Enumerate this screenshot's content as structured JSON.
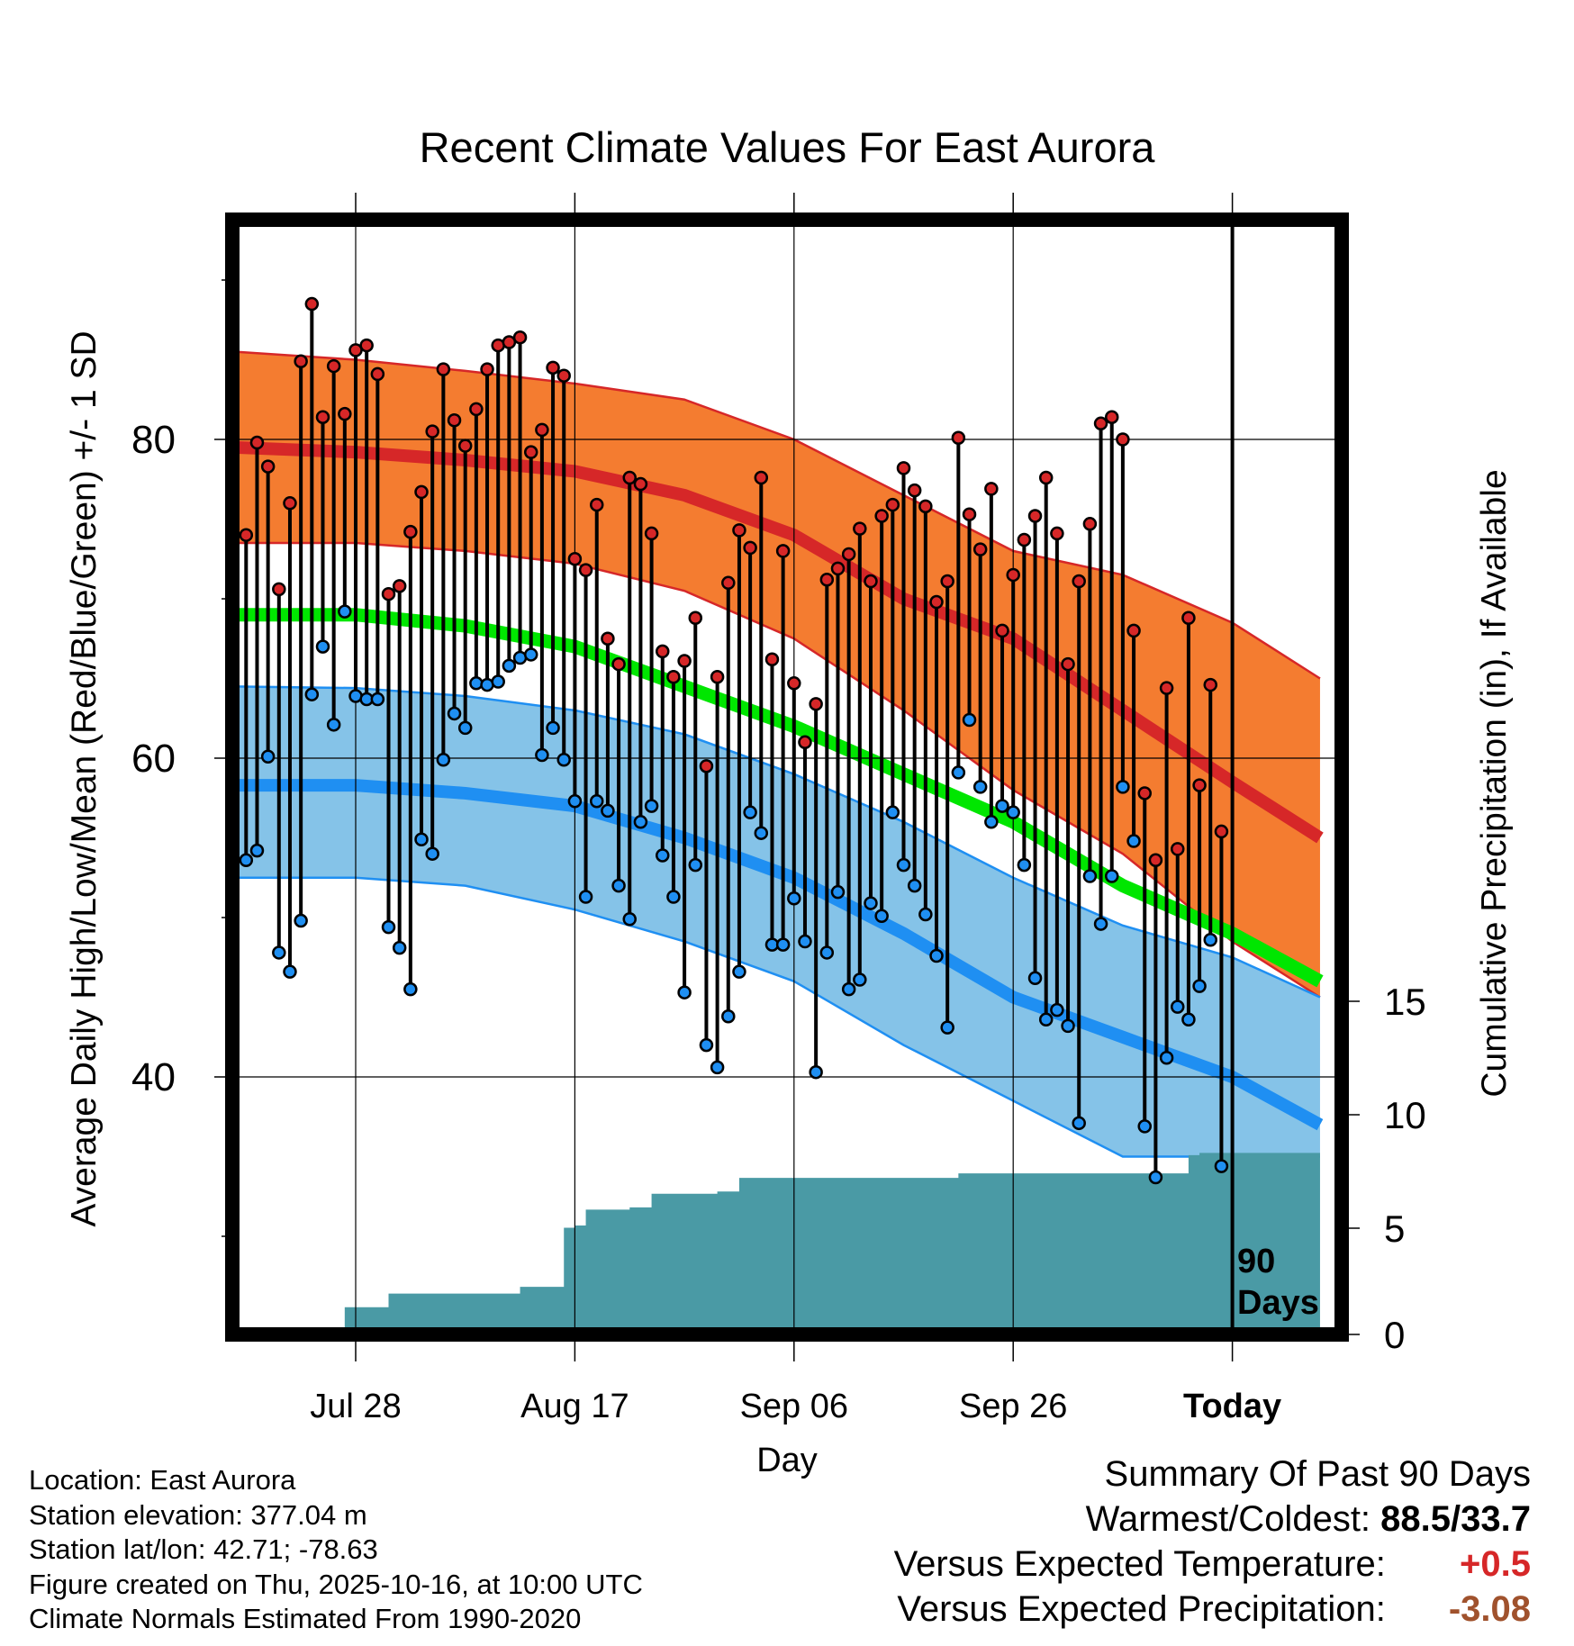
{
  "chart_data": {
    "type": "line",
    "title": "Recent Climate Values For East Aurora",
    "xlabel": "Day",
    "ylabel": "Average Daily High/Low/Mean (Red/Blue/Green) +/- 1 SD",
    "y2label": "Cumulative Precipitation (in), If Available",
    "ylim": [
      24,
      94
    ],
    "y2lim": [
      0,
      48.7
    ],
    "y_ticks": [
      80,
      60,
      40
    ],
    "y2_ticks": [
      15,
      10,
      5,
      0
    ],
    "xlim": [
      -11,
      88
    ],
    "x_tick_days": [
      0,
      20,
      40,
      60,
      80
    ],
    "x_tick_labels": [
      "Jul 28",
      "Aug 17",
      "Sep 06",
      "Sep 26",
      "Today"
    ],
    "today_marker": {
      "day": 80,
      "label_line1": "90",
      "label_line2": "Days"
    },
    "colors": {
      "high_band": "#f47c30",
      "high_mean": "#d62728",
      "mean_line": "#00e600",
      "low_band": "#85c3e8",
      "low_mean": "#1f8ff2",
      "precip": "#4a9aa5",
      "high_dot": "#d62728",
      "low_dot": "#1f8ff2"
    },
    "normals": {
      "days": [
        -11,
        0,
        10,
        20,
        30,
        40,
        50,
        60,
        70,
        80,
        88
      ],
      "high_upper": [
        85.5,
        85.0,
        84.3,
        83.5,
        82.5,
        80.0,
        76.5,
        73.0,
        71.5,
        68.5,
        65.0
      ],
      "high_mean": [
        79.5,
        79.2,
        78.7,
        78.0,
        76.5,
        74.0,
        70.0,
        67.5,
        63.0,
        58.5,
        55.0
      ],
      "high_lower": [
        73.5,
        73.5,
        73.0,
        72.2,
        70.5,
        67.5,
        63.0,
        58.0,
        54.0,
        48.5,
        45.0
      ],
      "mean": [
        69.0,
        69.0,
        68.3,
        67.0,
        64.5,
        62.0,
        59.0,
        56.0,
        52.0,
        49.0,
        46.0
      ],
      "low_upper": [
        64.5,
        64.4,
        63.9,
        63.0,
        61.5,
        59.0,
        56.0,
        52.5,
        49.5,
        47.5,
        45.0
      ],
      "low_mean": [
        58.3,
        58.3,
        57.8,
        57.0,
        55.0,
        52.5,
        49.0,
        45.0,
        42.5,
        40.0,
        37.0
      ],
      "low_lower": [
        52.5,
        52.5,
        52.0,
        50.5,
        48.5,
        46.0,
        42.0,
        38.5,
        35.0,
        35.0,
        35.0
      ]
    },
    "observed": {
      "days": [
        -10,
        -9,
        -8,
        -7,
        -6,
        -5,
        -4,
        -3,
        -2,
        -1,
        0,
        1,
        2,
        3,
        4,
        5,
        6,
        7,
        8,
        9,
        10,
        11,
        12,
        13,
        14,
        15,
        16,
        17,
        18,
        19,
        20,
        21,
        22,
        23,
        24,
        25,
        26,
        27,
        28,
        29,
        30,
        31,
        32,
        33,
        34,
        35,
        36,
        37,
        38,
        39,
        40,
        41,
        42,
        43,
        44,
        45,
        46,
        47,
        48,
        49,
        50,
        51,
        52,
        53,
        54,
        55,
        56,
        57,
        58,
        59,
        60,
        61,
        62,
        63,
        64,
        65,
        66,
        67,
        68,
        69,
        70,
        71,
        72,
        73,
        74,
        75,
        76,
        77,
        78,
        79
      ],
      "high": [
        74.0,
        79.8,
        78.3,
        70.6,
        76.0,
        84.9,
        88.5,
        81.4,
        84.6,
        81.6,
        85.6,
        85.9,
        84.1,
        70.3,
        70.8,
        74.2,
        76.7,
        80.5,
        84.4,
        81.2,
        79.6,
        81.9,
        84.4,
        85.9,
        86.1,
        86.4,
        79.2,
        80.6,
        84.5,
        84.0,
        72.5,
        71.8,
        75.9,
        67.5,
        65.9,
        77.6,
        77.2,
        74.1,
        66.7,
        65.1,
        66.1,
        68.8,
        59.5,
        65.1,
        71.0,
        74.3,
        73.2,
        77.6,
        66.2,
        73.0,
        64.7,
        61.0,
        63.4,
        71.2,
        71.9,
        72.8,
        74.4,
        71.1,
        75.2,
        75.9,
        78.2,
        76.8,
        75.8,
        69.8,
        71.1,
        80.1,
        75.3,
        73.1,
        76.9,
        68.0,
        71.5,
        73.7,
        75.2,
        77.6,
        74.1,
        65.9,
        71.1,
        74.7,
        81.0,
        81.4,
        80.0,
        68.0,
        57.8,
        53.6,
        64.4,
        54.3,
        68.8,
        58.3,
        64.6,
        55.4
      ],
      "low": [
        53.6,
        54.2,
        60.1,
        47.8,
        46.6,
        49.8,
        64.0,
        67.0,
        62.1,
        69.2,
        63.9,
        63.7,
        63.7,
        49.4,
        48.1,
        45.5,
        54.9,
        54.0,
        59.9,
        62.8,
        61.9,
        64.7,
        64.6,
        64.8,
        65.8,
        66.3,
        66.5,
        60.2,
        61.9,
        59.9,
        57.3,
        51.3,
        57.3,
        56.7,
        52.0,
        49.9,
        56.0,
        57.0,
        53.9,
        51.3,
        45.3,
        53.3,
        42.0,
        40.6,
        43.8,
        46.6,
        56.6,
        55.3,
        48.3,
        48.3,
        51.2,
        48.5,
        40.3,
        47.8,
        51.6,
        45.5,
        46.1,
        50.9,
        50.1,
        56.6,
        53.3,
        52.0,
        50.2,
        47.6,
        43.1,
        59.1,
        62.4,
        58.2,
        56.0,
        57.0,
        56.6,
        53.3,
        46.2,
        43.6,
        44.2,
        43.2,
        37.1,
        52.6,
        49.6,
        52.6,
        58.2,
        54.8,
        36.9,
        33.7,
        41.2,
        44.4,
        43.6,
        45.7,
        48.6,
        34.4
      ]
    },
    "precip": {
      "days": [
        -11,
        -2,
        -1,
        0,
        1,
        2,
        3,
        4,
        5,
        6,
        7,
        8,
        9,
        10,
        11,
        12,
        13,
        14,
        15,
        16,
        17,
        18,
        19,
        20,
        21,
        22,
        23,
        24,
        25,
        26,
        27,
        28,
        29,
        30,
        31,
        32,
        33,
        34,
        35,
        36,
        37,
        38,
        39,
        40,
        50,
        55,
        60,
        70,
        75,
        76,
        77,
        80,
        88
      ],
      "values": [
        0,
        0,
        1.2,
        1.2,
        1.2,
        1.2,
        1.8,
        1.8,
        1.8,
        1.8,
        1.8,
        1.8,
        1.8,
        1.8,
        1.8,
        1.8,
        1.8,
        1.8,
        2.1,
        2.1,
        2.1,
        2.1,
        4.7,
        4.8,
        5.5,
        5.5,
        5.5,
        5.5,
        5.6,
        5.6,
        6.2,
        6.2,
        6.2,
        6.2,
        6.2,
        6.2,
        6.3,
        6.3,
        6.9,
        6.9,
        6.9,
        6.9,
        6.9,
        6.9,
        6.9,
        7.1,
        7.1,
        7.1,
        7.1,
        7.9,
        8.0,
        8.0,
        8.0
      ]
    }
  },
  "footer": {
    "location": "Location: East Aurora",
    "elevation": "Station elevation: 377.04 m",
    "latlon": "Station lat/lon: 42.71; -78.63",
    "created": "Figure created on Thu, 2025-10-16, at 10:00 UTC",
    "normals": "Climate Normals Estimated From 1990-2020"
  },
  "summary": {
    "title": "Summary Of Past 90 Days",
    "warm_cold_label": "Warmest/Coldest:",
    "warm_cold_value": "88.5/33.7",
    "temp_label": "Versus Expected Temperature:",
    "temp_value": "+0.5",
    "temp_color": "#d62728",
    "precip_label": "Versus Expected Precipitation:",
    "precip_value": "-3.08",
    "precip_color": "#a0522d"
  }
}
